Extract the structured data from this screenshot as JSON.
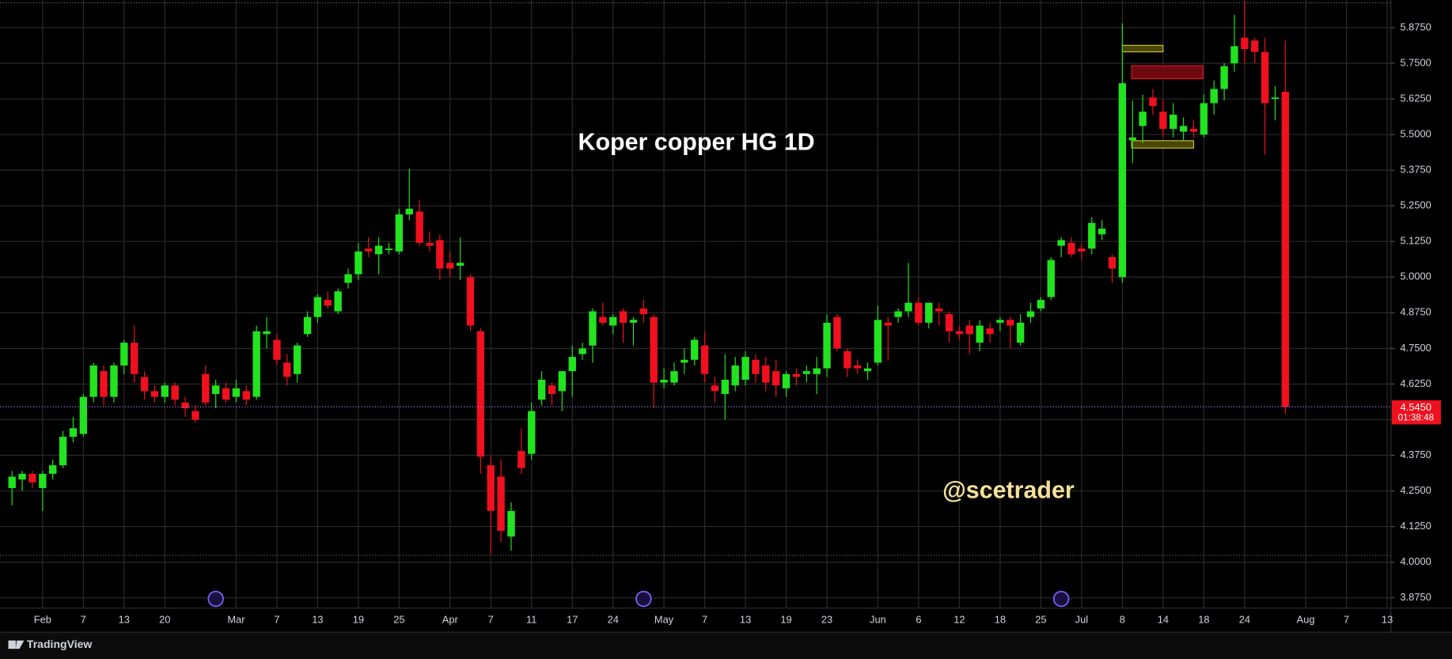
{
  "chart_data": {
    "type": "candlestick",
    "title": "Koper copper HG 1D",
    "watermark": "@scetrader",
    "brand": "TradingView",
    "up_color": "#22e31f",
    "down_color": "#f0101e",
    "grid": true,
    "ylim": [
      3.839,
      5.972
    ],
    "yticks": [
      {
        "value": 3.875,
        "label": "3.8750"
      },
      {
        "value": 4.0,
        "label": "4.0000"
      },
      {
        "value": 4.125,
        "label": "4.1250"
      },
      {
        "value": 4.25,
        "label": "4.2500"
      },
      {
        "value": 4.375,
        "label": "4.3750"
      },
      {
        "value": 4.5,
        "label": "4.5000"
      },
      {
        "value": 4.625,
        "label": "4.6250"
      },
      {
        "value": 4.75,
        "label": "4.7500"
      },
      {
        "value": 4.875,
        "label": "4.8750"
      },
      {
        "value": 5.0,
        "label": "5.0000"
      },
      {
        "value": 5.125,
        "label": "5.1250"
      },
      {
        "value": 5.25,
        "label": "5.2500"
      },
      {
        "value": 5.375,
        "label": "5.3750"
      },
      {
        "value": 5.5,
        "label": "5.5000"
      },
      {
        "value": 5.625,
        "label": "5.6250"
      },
      {
        "value": 5.75,
        "label": "5.7500"
      },
      {
        "value": 5.875,
        "label": "5.8750"
      }
    ],
    "last_price": {
      "value": 4.545,
      "label": "4.5450"
    },
    "countdown": "01:38:48",
    "categories": [
      null,
      null,
      null,
      "Feb",
      null,
      null,
      null,
      "7",
      null,
      null,
      null,
      "13",
      null,
      null,
      null,
      "20",
      null,
      null,
      null,
      null,
      null,
      null,
      "Mar",
      null,
      null,
      null,
      "7",
      null,
      null,
      null,
      "13",
      null,
      null,
      null,
      "19",
      null,
      null,
      null,
      "25",
      null,
      null,
      null,
      null,
      "Apr",
      null,
      null,
      null,
      "7",
      null,
      null,
      null,
      "11",
      null,
      null,
      null,
      "17",
      null,
      null,
      null,
      "24",
      null,
      null,
      null,
      null,
      "May",
      null,
      null,
      null,
      "7",
      null,
      null,
      null,
      "13",
      null,
      null,
      null,
      "19",
      null,
      null,
      null,
      "23",
      null,
      null,
      null,
      null,
      "Jun",
      null,
      null,
      null,
      "6",
      null,
      null,
      null,
      "12",
      null,
      null,
      null,
      "18",
      null,
      null,
      null,
      "25",
      null,
      null,
      null,
      "Jul",
      null,
      null,
      null,
      "8",
      null,
      null,
      null,
      "14",
      null,
      null,
      null,
      "18",
      null,
      null,
      null,
      "24",
      null,
      null,
      null,
      null,
      null,
      "Aug",
      null,
      null,
      null,
      "7",
      null,
      null,
      null,
      "13"
    ],
    "open": [
      4.26,
      4.29,
      4.31,
      4.26,
      4.31,
      4.34,
      4.44,
      4.45,
      4.58,
      4.67,
      4.58,
      4.69,
      4.77,
      4.65,
      4.6,
      4.58,
      4.62,
      4.56,
      4.53,
      4.66,
      4.59,
      4.61,
      4.58,
      4.6,
      4.58,
      4.8,
      4.78,
      4.7,
      4.66,
      4.8,
      4.86,
      4.92,
      4.88,
      4.98,
      5.01,
      5.1,
      5.08,
      5.1,
      5.09,
      5.22,
      5.23,
      5.12,
      5.13,
      5.05,
      5.04,
      5.0,
      4.81,
      4.34,
      4.3,
      4.09,
      4.39,
      4.38,
      4.57,
      4.62,
      4.6,
      4.67,
      4.73,
      4.76,
      4.86,
      4.83,
      4.88,
      4.84,
      4.89,
      4.86,
      4.63,
      4.63,
      4.7,
      4.71,
      4.76,
      4.62,
      4.59,
      4.62,
      4.64,
      4.71,
      4.69,
      4.67,
      4.61,
      4.66,
      4.66,
      4.66,
      4.68,
      4.86,
      4.74,
      4.69,
      4.67,
      4.7,
      4.84,
      4.86,
      4.88,
      4.91,
      4.84,
      4.89,
      4.87,
      4.81,
      4.83,
      4.77,
      4.82,
      4.84,
      4.85,
      4.77,
      4.86,
      4.89,
      4.93,
      5.11,
      5.12,
      5.1,
      5.1,
      5.15,
      5.07,
      5.0,
      5.48,
      5.53,
      5.63,
      5.58,
      5.52,
      5.51,
      5.52,
      5.5,
      5.61,
      5.66,
      5.75,
      5.84,
      5.83,
      5.79,
      5.63,
      5.65,
      null,
      null,
      null,
      null,
      null,
      null,
      null,
      null,
      null,
      null
    ],
    "high": [
      4.32,
      4.32,
      4.32,
      4.32,
      4.36,
      4.46,
      4.51,
      4.59,
      4.7,
      4.69,
      4.7,
      4.78,
      4.83,
      4.67,
      4.62,
      4.63,
      4.63,
      4.58,
      4.55,
      4.69,
      4.64,
      4.63,
      4.64,
      4.62,
      4.83,
      4.86,
      4.8,
      4.73,
      4.77,
      4.88,
      4.94,
      4.95,
      4.96,
      5.03,
      5.12,
      5.14,
      5.14,
      5.12,
      5.24,
      5.38,
      5.27,
      5.16,
      5.15,
      5.09,
      5.14,
      5.01,
      4.82,
      4.37,
      4.36,
      4.21,
      4.47,
      4.56,
      4.67,
      4.63,
      4.67,
      4.76,
      4.77,
      4.89,
      4.91,
      4.87,
      4.89,
      4.86,
      4.92,
      4.87,
      4.68,
      4.7,
      4.75,
      4.79,
      4.81,
      4.65,
      4.73,
      4.72,
      4.74,
      4.73,
      4.72,
      4.71,
      4.67,
      4.68,
      4.69,
      4.72,
      4.87,
      4.87,
      4.75,
      4.71,
      4.7,
      4.9,
      4.86,
      4.89,
      5.05,
      4.93,
      4.91,
      4.91,
      4.88,
      4.83,
      4.85,
      4.85,
      4.84,
      4.86,
      4.86,
      4.87,
      4.91,
      4.93,
      5.07,
      5.14,
      5.14,
      5.12,
      5.21,
      5.2,
      5.08,
      5.89,
      5.62,
      5.64,
      5.66,
      5.62,
      5.61,
      5.56,
      5.55,
      5.64,
      5.69,
      5.75,
      5.92,
      5.97,
      5.84,
      5.84,
      5.67,
      5.83,
      null,
      null,
      null,
      null,
      null,
      null,
      null,
      null,
      null,
      null
    ],
    "low": [
      4.2,
      4.25,
      4.26,
      4.18,
      4.29,
      4.33,
      4.42,
      4.44,
      4.56,
      4.55,
      4.56,
      4.66,
      4.63,
      4.57,
      4.56,
      4.56,
      4.55,
      4.51,
      4.49,
      4.55,
      4.54,
      4.56,
      4.56,
      4.55,
      4.57,
      4.75,
      4.69,
      4.62,
      4.63,
      4.79,
      4.84,
      4.89,
      4.87,
      4.96,
      4.99,
      5.07,
      5.01,
      5.08,
      5.08,
      5.2,
      5.11,
      5.09,
      4.99,
      5.0,
      4.99,
      4.81,
      4.31,
      4.03,
      4.07,
      4.04,
      4.31,
      4.36,
      4.55,
      4.55,
      4.53,
      4.58,
      4.71,
      4.7,
      4.83,
      4.8,
      4.77,
      4.76,
      4.84,
      4.54,
      4.61,
      4.62,
      4.66,
      4.69,
      4.63,
      4.56,
      4.5,
      4.6,
      4.62,
      4.63,
      4.6,
      4.58,
      4.58,
      4.62,
      4.63,
      4.59,
      4.65,
      4.74,
      4.65,
      4.66,
      4.64,
      4.69,
      4.71,
      4.84,
      4.86,
      4.83,
      4.82,
      4.83,
      4.77,
      4.78,
      4.73,
      4.74,
      4.77,
      4.81,
      4.75,
      4.76,
      4.84,
      4.88,
      4.92,
      5.07,
      5.07,
      5.06,
      5.08,
      5.13,
      4.98,
      4.98,
      5.4,
      5.47,
      5.57,
      5.49,
      5.49,
      5.48,
      5.49,
      5.49,
      5.57,
      5.62,
      5.72,
      5.75,
      5.75,
      5.43,
      5.55,
      4.52,
      null,
      null,
      null,
      null,
      null,
      null,
      null,
      null,
      null,
      null
    ],
    "close": [
      4.3,
      4.31,
      4.28,
      4.31,
      4.34,
      4.44,
      4.47,
      4.58,
      4.69,
      4.58,
      4.69,
      4.77,
      4.66,
      4.6,
      4.58,
      4.62,
      4.57,
      4.54,
      4.5,
      4.56,
      4.62,
      4.57,
      4.61,
      4.57,
      4.81,
      4.81,
      4.71,
      4.65,
      4.76,
      4.86,
      4.93,
      4.9,
      4.95,
      5.01,
      5.09,
      5.09,
      5.11,
      5.1,
      5.22,
      5.24,
      5.12,
      5.11,
      5.03,
      5.03,
      5.05,
      4.83,
      4.37,
      4.18,
      4.11,
      4.18,
      4.33,
      4.53,
      4.64,
      4.59,
      4.67,
      4.72,
      4.75,
      4.88,
      4.84,
      4.86,
      4.84,
      4.85,
      4.87,
      4.63,
      4.64,
      4.67,
      4.71,
      4.78,
      4.66,
      4.6,
      4.64,
      4.69,
      4.72,
      4.66,
      4.63,
      4.62,
      4.66,
      4.65,
      4.67,
      4.68,
      4.84,
      4.75,
      4.68,
      4.68,
      4.68,
      4.85,
      4.83,
      4.88,
      4.91,
      4.84,
      4.91,
      4.88,
      4.81,
      4.8,
      4.8,
      4.83,
      4.8,
      4.85,
      4.83,
      4.84,
      4.88,
      4.92,
      5.06,
      5.13,
      5.08,
      5.09,
      5.19,
      5.17,
      5.03,
      5.68,
      5.49,
      5.58,
      5.6,
      5.52,
      5.57,
      5.53,
      5.51,
      5.61,
      5.66,
      5.74,
      5.81,
      5.8,
      5.79,
      5.61,
      5.63,
      4.545,
      null,
      null,
      null,
      null,
      null,
      null,
      null,
      null,
      null,
      null
    ]
  }
}
